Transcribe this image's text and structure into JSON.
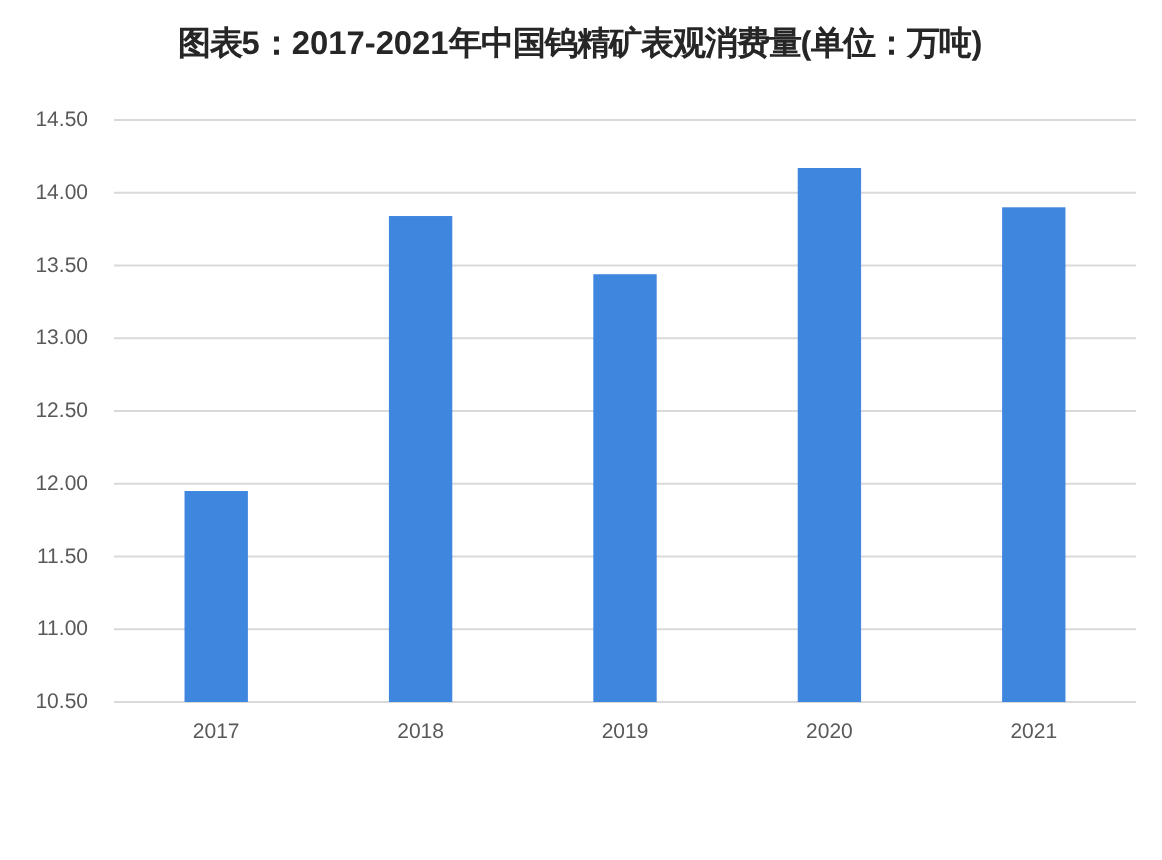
{
  "chart_data": {
    "type": "bar",
    "title": "图表5：2017-2021年中国钨精矿表观消费量(单位：万吨)",
    "categories": [
      "2017",
      "2018",
      "2019",
      "2020",
      "2021"
    ],
    "values": [
      11.95,
      13.84,
      13.44,
      14.17,
      13.9
    ],
    "color": "#3f86de",
    "ylim": [
      10.5,
      14.5
    ],
    "yticks": [
      {
        "value": 10.5,
        "label": "10.50"
      },
      {
        "value": 11,
        "label": "11.00"
      },
      {
        "value": 11.5,
        "label": "11.50"
      },
      {
        "value": 12,
        "label": "12.00"
      },
      {
        "value": 12.5,
        "label": "12.50"
      },
      {
        "value": 13,
        "label": "13.00"
      },
      {
        "value": 13.5,
        "label": "13.50"
      },
      {
        "value": 14,
        "label": "14.00"
      },
      {
        "value": 14.5,
        "label": "14.50"
      }
    ],
    "grid": "y"
  }
}
